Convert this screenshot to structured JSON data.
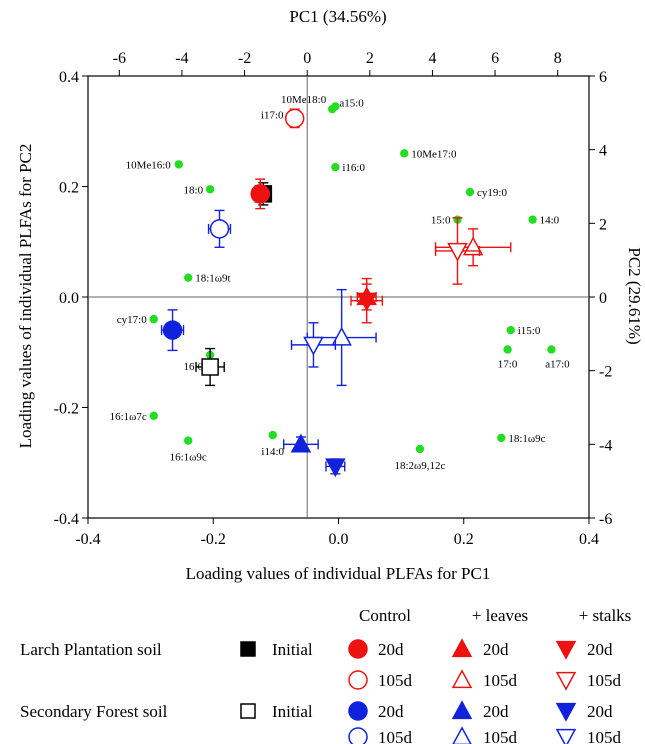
{
  "chart_data": {
    "type": "scatter",
    "title": "",
    "top_axis": {
      "label": "PC1 (34.56%)",
      "range": [
        -7,
        9
      ],
      "ticks": [
        {
          "value": -6,
          "label": "-6"
        },
        {
          "value": -4,
          "label": "-4"
        },
        {
          "value": -2,
          "label": "-2"
        },
        {
          "value": 0,
          "label": "0"
        },
        {
          "value": 2,
          "label": "2"
        },
        {
          "value": 4,
          "label": "4"
        },
        {
          "value": 6,
          "label": "6"
        },
        {
          "value": 8,
          "label": "8"
        }
      ]
    },
    "right_axis": {
      "label": "PC2 (29.61%)",
      "range": [
        -6,
        6
      ],
      "ticks": [
        {
          "value": 6,
          "label": "6"
        },
        {
          "value": 4,
          "label": "4"
        },
        {
          "value": 2,
          "label": "2"
        },
        {
          "value": 0,
          "label": "0"
        },
        {
          "value": -2,
          "label": "-2"
        },
        {
          "value": -4,
          "label": "-4"
        },
        {
          "value": -6,
          "label": "-6"
        }
      ]
    },
    "bottom_axis": {
      "label": "Loading values of individual PLFAs for PC1",
      "range": [
        -0.4,
        0.4
      ],
      "ticks": [
        {
          "value": -0.4,
          "label": "-0.4"
        },
        {
          "value": -0.2,
          "label": "-0.2"
        },
        {
          "value": 0.0,
          "label": "0.0"
        },
        {
          "value": 0.2,
          "label": "0.2"
        },
        {
          "value": 0.4,
          "label": "0.4"
        }
      ]
    },
    "left_axis": {
      "label": "Loading values of individual PLFAs for PC2",
      "range": [
        -0.4,
        0.4
      ],
      "ticks": [
        {
          "value": 0.4,
          "label": "0.4"
        },
        {
          "value": 0.2,
          "label": "0.2"
        },
        {
          "value": 0.0,
          "label": "0.0"
        },
        {
          "value": -0.2,
          "label": "-0.2"
        },
        {
          "value": -0.4,
          "label": "-0.4"
        }
      ]
    },
    "grid": false,
    "zero_lines": true,
    "loadings_color": "#22dd22",
    "loadings": [
      {
        "label": "10Me18:0",
        "x": -0.01,
        "y": 0.34
      },
      {
        "label": "a15:0",
        "x": -0.005,
        "y": 0.345
      },
      {
        "label": "i17:0",
        "x": -0.075,
        "y": 0.33
      },
      {
        "label": "10Me16:0",
        "x": -0.255,
        "y": 0.24
      },
      {
        "label": "i16:0",
        "x": -0.005,
        "y": 0.235
      },
      {
        "label": "10Me17:0",
        "x": 0.105,
        "y": 0.26
      },
      {
        "label": "18:0",
        "x": -0.205,
        "y": 0.195
      },
      {
        "label": "cy19:0",
        "x": 0.21,
        "y": 0.19
      },
      {
        "label": "15:0",
        "x": 0.19,
        "y": 0.14
      },
      {
        "label": "14:0",
        "x": 0.31,
        "y": 0.14
      },
      {
        "label": "18:1ω9t",
        "x": -0.24,
        "y": 0.035
      },
      {
        "label": "cy17:0",
        "x": -0.295,
        "y": -0.04
      },
      {
        "label": "i15:0",
        "x": 0.275,
        "y": -0.06
      },
      {
        "label": "16:0",
        "x": -0.205,
        "y": -0.105
      },
      {
        "label": "17:0",
        "x": 0.27,
        "y": -0.095
      },
      {
        "label": "a17:0",
        "x": 0.34,
        "y": -0.095
      },
      {
        "label": "16:1ω7c",
        "x": -0.295,
        "y": -0.215
      },
      {
        "label": "i14:0",
        "x": -0.105,
        "y": -0.25
      },
      {
        "label": "16:1ω9c",
        "x": -0.24,
        "y": -0.26
      },
      {
        "label": "18:1ω9c",
        "x": 0.26,
        "y": -0.255
      },
      {
        "label": "18:2ω9,12c",
        "x": 0.13,
        "y": -0.275
      }
    ],
    "scores": [
      {
        "name": "Larch Plantation soil Initial",
        "soil": "larch",
        "treatment": "initial",
        "time": "",
        "x": -1.4,
        "xerr": 0.25,
        "y": 2.8,
        "yerr": 0.3
      },
      {
        "name": "Larch Plantation soil Control 20d",
        "soil": "larch",
        "treatment": "control",
        "time": "20d",
        "x": -1.5,
        "xerr": 0.2,
        "y": 2.8,
        "yerr": 0.4
      },
      {
        "name": "Larch Plantation soil Control 105d",
        "soil": "larch",
        "treatment": "control",
        "time": "105d",
        "x": -0.4,
        "xerr": 0.25,
        "y": 4.85,
        "yerr": 0.25
      },
      {
        "name": "Larch Plantation soil + leaves 20d",
        "soil": "larch",
        "treatment": "leaves",
        "time": "20d",
        "x": 1.9,
        "xerr": 0.3,
        "y": 0.0,
        "yerr": 0.35
      },
      {
        "name": "Larch Plantation soil + leaves 105d",
        "soil": "larch",
        "treatment": "leaves",
        "time": "105d",
        "x": 5.3,
        "xerr": 1.2,
        "y": 1.35,
        "yerr": 0.5
      },
      {
        "name": "Larch Plantation soil + stalks 20d",
        "soil": "larch",
        "treatment": "stalks",
        "time": "20d",
        "x": 1.9,
        "xerr": 0.5,
        "y": -0.1,
        "yerr": 0.6
      },
      {
        "name": "Larch Plantation soil + stalks 105d",
        "soil": "larch",
        "treatment": "stalks",
        "time": "105d",
        "x": 4.8,
        "xerr": 0.7,
        "y": 1.25,
        "yerr": 0.9
      },
      {
        "name": "Secondary Forest soil Initial",
        "soil": "secondary",
        "treatment": "initial",
        "time": "",
        "x": -3.1,
        "xerr": 0.45,
        "y": -1.9,
        "yerr": 0.5
      },
      {
        "name": "Secondary Forest soil Control 20d",
        "soil": "secondary",
        "treatment": "control",
        "time": "20d",
        "x": -4.3,
        "xerr": 0.35,
        "y": -0.9,
        "yerr": 0.55
      },
      {
        "name": "Secondary Forest soil Control 105d",
        "soil": "secondary",
        "treatment": "control",
        "time": "105d",
        "x": -2.8,
        "xerr": 0.35,
        "y": 1.85,
        "yerr": 0.5
      },
      {
        "name": "Secondary Forest soil + leaves 20d",
        "soil": "secondary",
        "treatment": "leaves",
        "time": "20d",
        "x": -0.2,
        "xerr": 0.55,
        "y": -4.0,
        "yerr": 0.2
      },
      {
        "name": "Secondary Forest soil + leaves 105d",
        "soil": "secondary",
        "treatment": "leaves",
        "time": "105d",
        "x": 1.1,
        "xerr": 1.1,
        "y": -1.1,
        "yerr": 1.3
      },
      {
        "name": "Secondary Forest soil + stalks 20d",
        "soil": "secondary",
        "treatment": "stalks",
        "time": "20d",
        "x": 0.9,
        "xerr": 0.3,
        "y": -4.6,
        "yerr": 0.2
      },
      {
        "name": "Secondary Forest soil + stalks 105d",
        "soil": "secondary",
        "treatment": "stalks",
        "time": "105d",
        "x": 0.2,
        "xerr": 0.7,
        "y": -1.3,
        "yerr": 0.6
      }
    ],
    "legend": {
      "placement": "bottom",
      "group_headers": {
        "control": "Control",
        "leaves": "+ leaves",
        "stalks": "+ stalks"
      },
      "soils": [
        {
          "key": "larch",
          "label": "Larch Plantation soil",
          "color": "#ee1111",
          "initial_label": "Initial",
          "initial_fill": "#000000"
        },
        {
          "key": "secondary",
          "label": "Secondary Forest soil",
          "color": "#1122dd",
          "initial_label": "Initial",
          "initial_fill": "#ffffff"
        }
      ],
      "times": [
        {
          "key": "20d",
          "label": "20d",
          "filled": true
        },
        {
          "key": "105d",
          "label": "105d",
          "filled": false
        }
      ]
    }
  }
}
